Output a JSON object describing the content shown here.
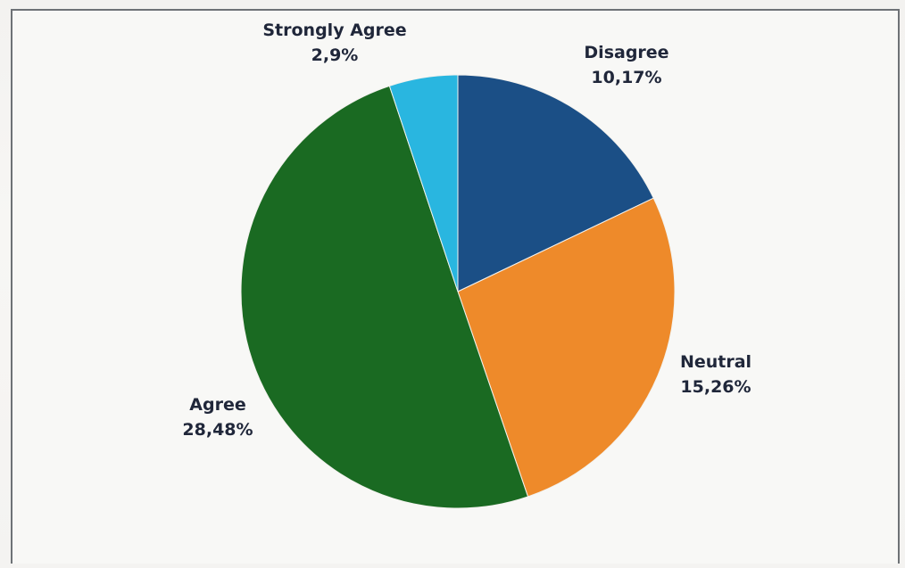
{
  "chart_data": {
    "type": "pie",
    "categories": [
      "Disagree",
      "Neutral",
      "Agree",
      "Strongly Agree"
    ],
    "values": [
      10.17,
      15.26,
      28.48,
      2.9
    ],
    "value_labels": [
      "10,17%",
      "15,26%",
      "28,48%",
      "2,9%"
    ],
    "colors": [
      "#1b4f86",
      "#ee8a2a",
      "#1a6a22",
      "#29b6e0"
    ],
    "start_angle_deg": 0,
    "direction": "clockwise",
    "legend": "none",
    "title": ""
  }
}
